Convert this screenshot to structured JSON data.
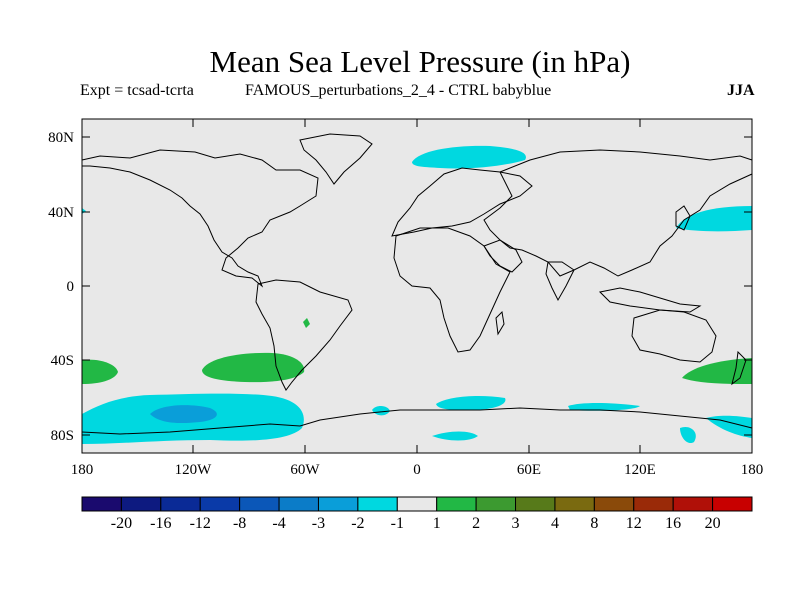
{
  "title": "Mean Sea Level Pressure (in hPa)",
  "subtitle_left": "Expt = tcsad-tcrta",
  "subtitle_center": "FAMOUS_perturbations_2_4 - CTRL babyblue",
  "subtitle_right": "JJA",
  "lat_labels": [
    "80N",
    "40N",
    "0",
    "40S",
    "80S"
  ],
  "lon_labels": [
    "180",
    "120W",
    "60W",
    "0",
    "60E",
    "120E",
    "180"
  ],
  "colorbar": {
    "labels": [
      "-20",
      "-16",
      "-12",
      "-8",
      "-4",
      "-3",
      "-2",
      "-1",
      "1",
      "2",
      "3",
      "4",
      "8",
      "12",
      "16",
      "20"
    ],
    "colors": [
      "#1a0a6e",
      "#0d1a80",
      "#0a2a96",
      "#0a3aa8",
      "#0b57b8",
      "#0b7cc8",
      "#0a9ed9",
      "#00d8e0",
      "#e8e8e8",
      "#22b845",
      "#3c9a30",
      "#577a1a",
      "#7a6a10",
      "#8a4a0a",
      "#9a2a08",
      "#b01008",
      "#c80000"
    ]
  },
  "colors": {
    "ocean": "#e8e8e8",
    "neg_light": "#00d8e0",
    "neg_mid": "#0a9ed9",
    "pos_light": "#22b845",
    "coast": "#000000"
  }
}
